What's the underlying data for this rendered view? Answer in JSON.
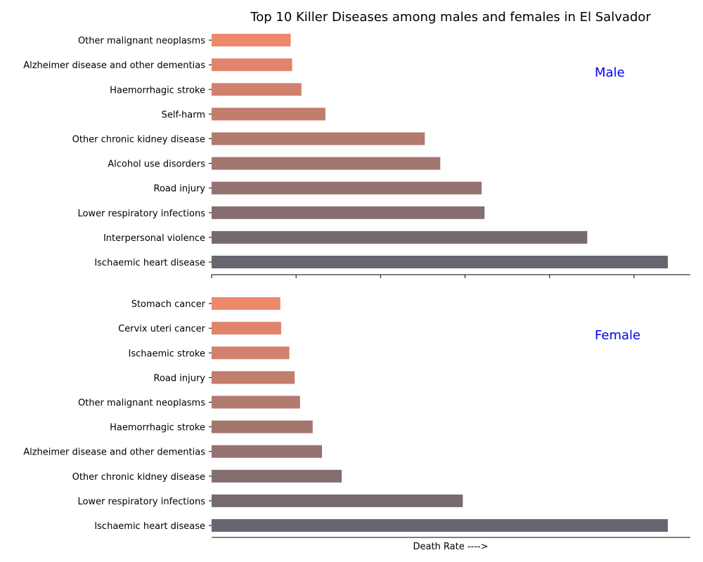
{
  "chart_data": {
    "type": "bar",
    "orientation": "horizontal",
    "title": "Top 10 Killer Diseases among males and females in El Salvador",
    "xlabel": "Death Rate ---->",
    "xlim": [
      0,
      170
    ],
    "grid": false,
    "color_ramp": [
      "#666670",
      "#ef896c"
    ],
    "panels": [
      {
        "label": "Male",
        "categories": [
          "Ischaemic heart disease",
          "Interpersonal violence",
          "Lower respiratory infections",
          "Road injury",
          "Alcohol use disorders",
          "Other chronic kidney disease",
          "Self-harm",
          "Haemorrhagic stroke",
          "Alzheimer disease and other dementias",
          "Other malignant neoplasms"
        ],
        "values": [
          162,
          133.4,
          96.9,
          95.9,
          81.2,
          75.7,
          40.4,
          31.9,
          28.6,
          28.1
        ]
      },
      {
        "label": "Female",
        "categories": [
          "Ischaemic heart disease",
          "Lower respiratory infections",
          "Other chronic kidney disease",
          "Alzheimer disease and other dementias",
          "Haemorrhagic stroke",
          "Other malignant neoplasms",
          "Road injury",
          "Ischaemic stroke",
          "Cervix uteri cancer",
          "Stomach cancer"
        ],
        "values": [
          162,
          89.2,
          46.2,
          39.2,
          35.9,
          31.4,
          29.5,
          27.6,
          24.7,
          24.4
        ]
      }
    ]
  }
}
